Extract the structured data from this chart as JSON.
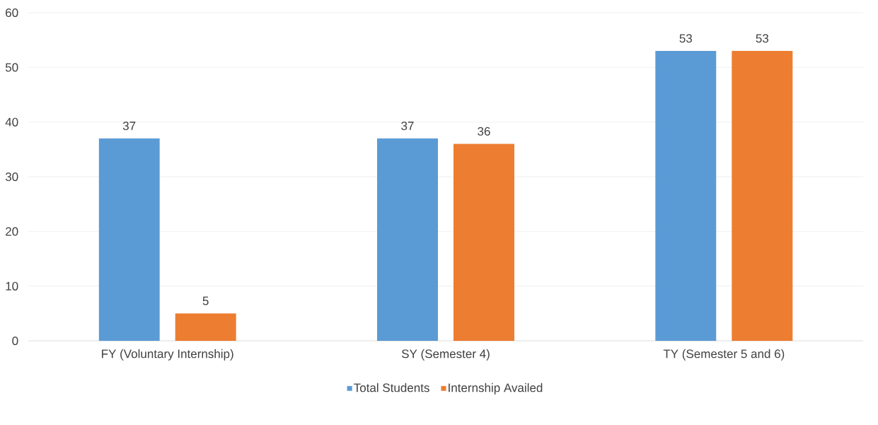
{
  "chart_data": {
    "type": "bar",
    "categories": [
      "FY (Voluntary Internship)",
      "SY (Semester 4)",
      "TY (Semester 5 and 6)"
    ],
    "series": [
      {
        "name": "Total Students",
        "color": "#5b9bd5",
        "values": [
          37,
          37,
          53
        ]
      },
      {
        "name": "Internship Availed",
        "color": "#ed7d31",
        "values": [
          5,
          36,
          53
        ]
      }
    ],
    "ylim": [
      0,
      60
    ],
    "yticks": [
      0,
      10,
      20,
      30,
      40,
      50,
      60
    ],
    "grid": "y",
    "legend": "bottom",
    "data_labels": true
  }
}
